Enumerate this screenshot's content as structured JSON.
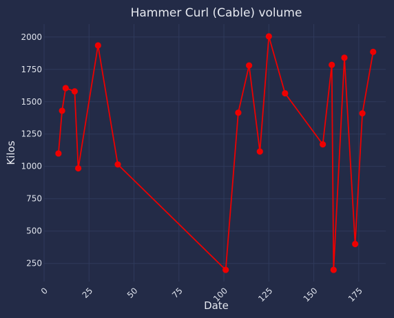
{
  "chart_data": {
    "type": "line",
    "title": "Hammer Curl (Cable) volume",
    "xlabel": "Date",
    "ylabel": "Kilos",
    "xlim": [
      0,
      190
    ],
    "ylim": [
      110,
      2100
    ],
    "x_ticks": [
      0,
      25,
      50,
      75,
      100,
      125,
      150,
      175
    ],
    "y_ticks": [
      250,
      500,
      750,
      1000,
      1250,
      1500,
      1750,
      2000
    ],
    "grid": true,
    "series": [
      {
        "name": "Hammer Curl (Cable)",
        "color": "#ee0000",
        "x": [
          8,
          10,
          12,
          17,
          19,
          30,
          41,
          101,
          108,
          114,
          120,
          125,
          134,
          155,
          160,
          161,
          167,
          173,
          177,
          183
        ],
        "y": [
          1100,
          1430,
          1605,
          1580,
          985,
          1935,
          1015,
          200,
          1415,
          1780,
          1115,
          2005,
          1565,
          1170,
          1785,
          200,
          1840,
          400,
          1410,
          1885
        ]
      }
    ]
  }
}
